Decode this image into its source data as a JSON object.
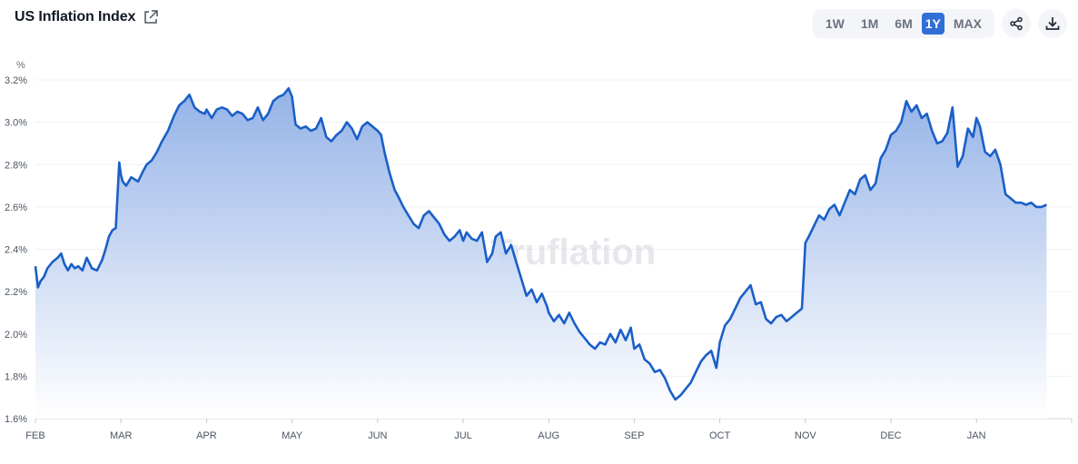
{
  "header": {
    "title": "US Inflation Index",
    "ranges": [
      "1W",
      "1M",
      "6M",
      "1Y",
      "MAX"
    ],
    "active_range": "1Y"
  },
  "icons": {
    "external_link": "external-link-icon",
    "share": "share-icon",
    "download": "download-icon"
  },
  "watermark": "Truflation",
  "colors": {
    "line": "#1a5fc8",
    "fill_top": "#8eaee6",
    "fill_bottom": "#ffffff",
    "accent": "#2f6fd6"
  },
  "chart_data": {
    "type": "area",
    "title": "US Inflation Index",
    "ylabel": "%",
    "ylim": [
      1.6,
      3.2
    ],
    "yticks": [
      "1.6%",
      "1.8%",
      "2.0%",
      "2.2%",
      "2.4%",
      "2.6%",
      "2.8%",
      "3.0%",
      "3.2%"
    ],
    "xticks": [
      "FEB",
      "MAR",
      "APR",
      "MAY",
      "JUN",
      "JUL",
      "AUG",
      "SEP",
      "OCT",
      "NOV",
      "DEC",
      "JAN"
    ],
    "grid": true,
    "series": [
      {
        "x": [
          0,
          0.03,
          0.06,
          0.1,
          0.14,
          0.2,
          0.26,
          0.3,
          0.34,
          0.38,
          0.42,
          0.46,
          0.5,
          0.55,
          0.6,
          0.66,
          0.72,
          0.78,
          0.82,
          0.86,
          0.9,
          0.94,
          0.98,
          1.0,
          1.02,
          1.06,
          1.12,
          1.2,
          1.26,
          1.3,
          1.36,
          1.42,
          1.48,
          1.55,
          1.62,
          1.68,
          1.74,
          1.8,
          1.86,
          1.92,
          1.98,
          2.0,
          2.06,
          2.12,
          2.18,
          2.24,
          2.3,
          2.36,
          2.42,
          2.48,
          2.54,
          2.6,
          2.66,
          2.72,
          2.78,
          2.84,
          2.9,
          2.96,
          3.0,
          3.04,
          3.1,
          3.16,
          3.22,
          3.28,
          3.34,
          3.4,
          3.46,
          3.52,
          3.58,
          3.64,
          3.7,
          3.76,
          3.82,
          3.88,
          3.94,
          4.0,
          4.04,
          4.08,
          4.14,
          4.2,
          4.24,
          4.3,
          4.36,
          4.42,
          4.48,
          4.54,
          4.6,
          4.66,
          4.72,
          4.78,
          4.84,
          4.9,
          4.96,
          5.0,
          5.04,
          5.1,
          5.16,
          5.22,
          5.28,
          5.34,
          5.38,
          5.44,
          5.5,
          5.56,
          5.62,
          5.68,
          5.74,
          5.8,
          5.86,
          5.92,
          5.98,
          6.0,
          6.06,
          6.12,
          6.18,
          6.24,
          6.3,
          6.36,
          6.42,
          6.48,
          6.54,
          6.6,
          6.66,
          6.72,
          6.78,
          6.84,
          6.9,
          6.96,
          7.0,
          7.06,
          7.12,
          7.18,
          7.24,
          7.3,
          7.36,
          7.42,
          7.48,
          7.54,
          7.6,
          7.66,
          7.72,
          7.78,
          7.84,
          7.9,
          7.96,
          8.0,
          8.06,
          8.12,
          8.18,
          8.24,
          8.3,
          8.36,
          8.42,
          8.48,
          8.54,
          8.6,
          8.66,
          8.72,
          8.78,
          8.84,
          8.9,
          8.96,
          9.0,
          9.04,
          9.1,
          9.16,
          9.22,
          9.28,
          9.34,
          9.4,
          9.46,
          9.52,
          9.58,
          9.64,
          9.7,
          9.76,
          9.82,
          9.88,
          9.94,
          10.0,
          10.06,
          10.12,
          10.18,
          10.24,
          10.3,
          10.36,
          10.42,
          10.48,
          10.54,
          10.6,
          10.66,
          10.72,
          10.78,
          10.84,
          10.9,
          10.96,
          11.0,
          11.04,
          11.1,
          11.16,
          11.22,
          11.28,
          11.34,
          11.4,
          11.46,
          11.52,
          11.58,
          11.64,
          11.7,
          11.76,
          11.82
        ],
        "values": [
          2.32,
          2.22,
          2.25,
          2.27,
          2.31,
          2.34,
          2.36,
          2.38,
          2.33,
          2.3,
          2.33,
          2.31,
          2.32,
          2.3,
          2.36,
          2.31,
          2.3,
          2.35,
          2.4,
          2.46,
          2.49,
          2.5,
          2.81,
          2.75,
          2.72,
          2.7,
          2.74,
          2.72,
          2.77,
          2.8,
          2.82,
          2.86,
          2.91,
          2.96,
          3.03,
          3.08,
          3.1,
          3.13,
          3.07,
          3.05,
          3.04,
          3.06,
          3.02,
          3.06,
          3.07,
          3.06,
          3.03,
          3.05,
          3.04,
          3.01,
          3.02,
          3.07,
          3.01,
          3.04,
          3.1,
          3.12,
          3.13,
          3.16,
          3.12,
          2.99,
          2.97,
          2.98,
          2.96,
          2.97,
          3.02,
          2.93,
          2.91,
          2.94,
          2.96,
          3.0,
          2.97,
          2.92,
          2.98,
          3.0,
          2.98,
          2.96,
          2.94,
          2.86,
          2.76,
          2.68,
          2.65,
          2.6,
          2.56,
          2.52,
          2.5,
          2.56,
          2.58,
          2.55,
          2.52,
          2.47,
          2.44,
          2.46,
          2.49,
          2.44,
          2.48,
          2.45,
          2.44,
          2.48,
          2.34,
          2.38,
          2.46,
          2.48,
          2.38,
          2.42,
          2.34,
          2.26,
          2.18,
          2.21,
          2.15,
          2.19,
          2.13,
          2.1,
          2.06,
          2.09,
          2.05,
          2.1,
          2.05,
          2.01,
          1.98,
          1.95,
          1.93,
          1.96,
          1.95,
          2.0,
          1.96,
          2.02,
          1.97,
          2.03,
          1.93,
          1.95,
          1.88,
          1.86,
          1.82,
          1.83,
          1.79,
          1.73,
          1.69,
          1.71,
          1.74,
          1.77,
          1.82,
          1.87,
          1.9,
          1.92,
          1.84,
          1.96,
          2.04,
          2.07,
          2.12,
          2.17,
          2.2,
          2.23,
          2.14,
          2.15,
          2.07,
          2.05,
          2.08,
          2.09,
          2.06,
          2.08,
          2.1,
          2.12,
          2.43,
          2.46,
          2.51,
          2.56,
          2.54,
          2.59,
          2.61,
          2.56,
          2.62,
          2.68,
          2.66,
          2.73,
          2.75,
          2.68,
          2.71,
          2.83,
          2.87,
          2.94,
          2.96,
          3.0,
          3.1,
          3.05,
          3.08,
          3.02,
          3.04,
          2.96,
          2.9,
          2.91,
          2.95,
          3.07,
          2.79,
          2.84,
          2.97,
          2.93,
          3.02,
          2.98,
          2.86,
          2.84,
          2.87,
          2.8,
          2.66,
          2.64,
          2.62,
          2.62,
          2.61,
          2.62,
          2.6,
          2.6,
          2.61
        ]
      }
    ]
  }
}
